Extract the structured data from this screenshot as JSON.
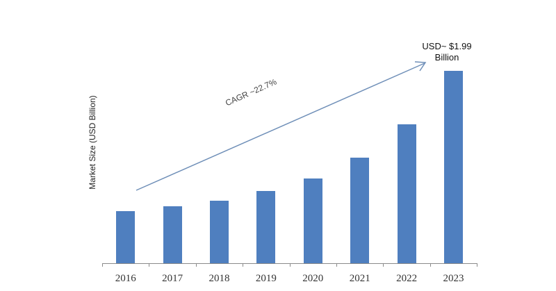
{
  "chart_data": {
    "type": "bar",
    "title": "",
    "xlabel": "",
    "ylabel": "Market Size (USD Billion)",
    "categories": [
      "2016",
      "2017",
      "2018",
      "2019",
      "2020",
      "2021",
      "2022",
      "2023"
    ],
    "values": [
      0.54,
      0.59,
      0.65,
      0.75,
      0.88,
      1.09,
      1.44,
      1.99
    ],
    "ylim": [
      0,
      2.2
    ],
    "grid": false,
    "legend": null,
    "bar_color": "#4f7fbf",
    "annotations": [
      {
        "text": "USD~ $1.99 Billion",
        "target": "2023"
      },
      {
        "text": "CAGR ~22.7%",
        "type": "trend-arrow",
        "from": "2016",
        "to": "2023"
      }
    ]
  },
  "labels": {
    "ylabel": "Market Size (USD Billion)",
    "top_value_line1": "USD~ $1.99",
    "top_value_line2": "Billion",
    "cagr": "CAGR ~22.7%"
  }
}
